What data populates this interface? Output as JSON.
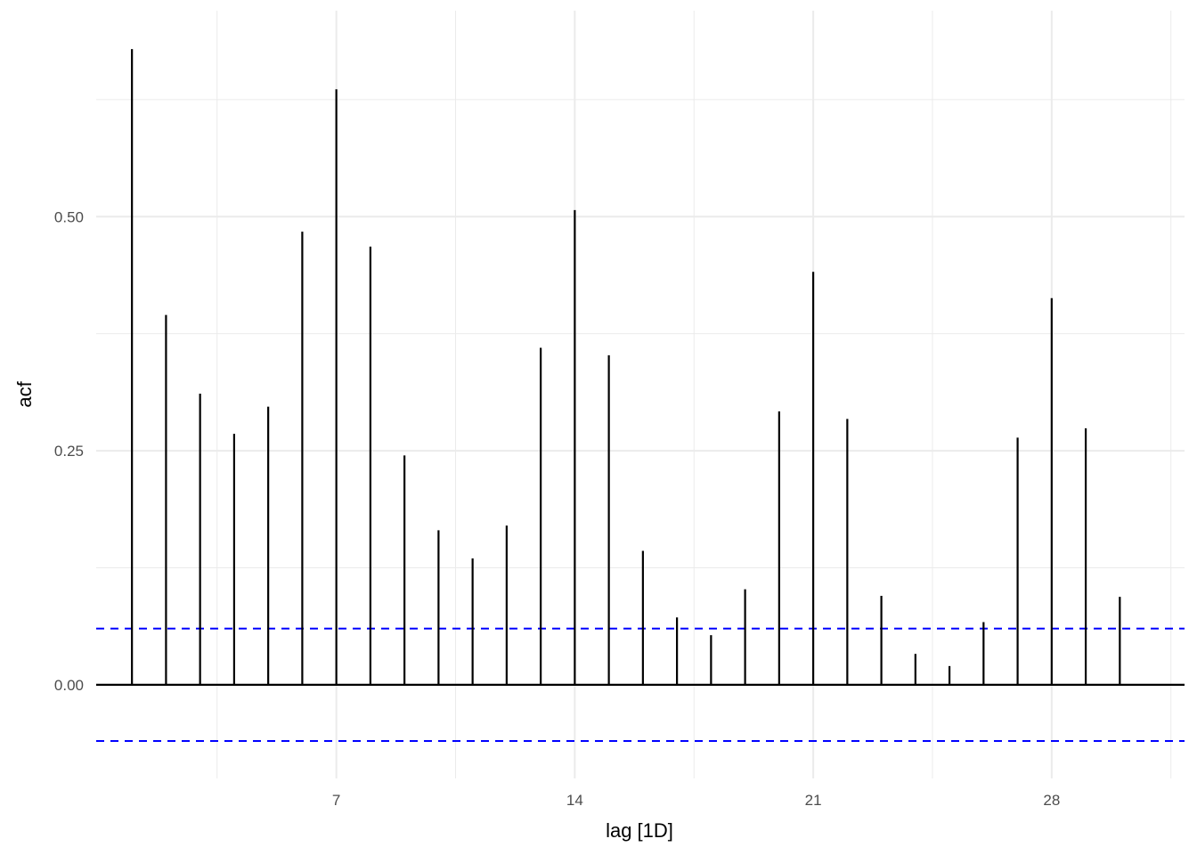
{
  "chart_data": {
    "type": "bar",
    "subtype": "acf-lollipop",
    "xlabel": "lag [1D]",
    "ylabel": "acf",
    "x_ticks": [
      7,
      14,
      21,
      28
    ],
    "x_tick_labels": [
      "7",
      "14",
      "21",
      "28"
    ],
    "y_ticks": [
      0.0,
      0.25,
      0.5
    ],
    "y_tick_labels": [
      "0.00",
      "0.25",
      "0.50"
    ],
    "xlim": [
      -0.05,
      31.9
    ],
    "ylim": [
      -0.1,
      0.72
    ],
    "grid": true,
    "confidence_bound": 0.06,
    "lags": [
      1,
      2,
      3,
      4,
      5,
      6,
      7,
      8,
      9,
      10,
      11,
      12,
      13,
      14,
      15,
      16,
      17,
      18,
      19,
      20,
      21,
      22,
      23,
      24,
      25,
      26,
      27,
      28,
      29,
      30
    ],
    "values": [
      0.679,
      0.395,
      0.311,
      0.268,
      0.297,
      0.484,
      0.636,
      0.468,
      0.245,
      0.165,
      0.135,
      0.17,
      0.36,
      0.507,
      0.352,
      0.143,
      0.072,
      0.053,
      0.102,
      0.292,
      0.441,
      0.284,
      0.095,
      0.033,
      0.02,
      0.067,
      0.264,
      0.413,
      0.274,
      0.094
    ],
    "colors": {
      "bars": "#000000",
      "bounds": "#0000ff",
      "grid": "#ebebeb"
    }
  }
}
